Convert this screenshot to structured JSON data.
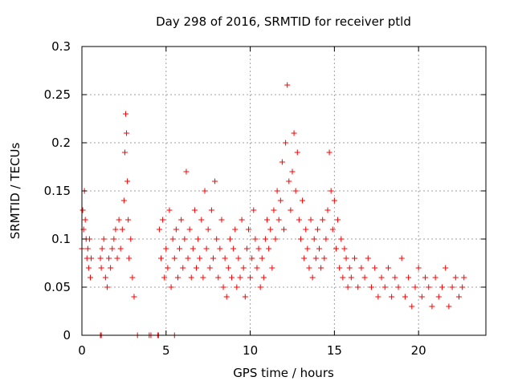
{
  "chart_data": {
    "type": "scatter",
    "title": "Day 298 of 2016, SRMTID for receiver ptld",
    "xlabel": "GPS time / hours",
    "ylabel": "SRMTID / TECUs",
    "xlim": [
      0,
      24
    ],
    "ylim": [
      0,
      0.3
    ],
    "xticks": [
      0,
      5,
      10,
      15,
      20
    ],
    "xtick_labels": [
      "0",
      "5",
      "10",
      "15",
      "20"
    ],
    "yticks": [
      0,
      0.05,
      0.1,
      0.15,
      0.2,
      0.25,
      0.3
    ],
    "ytick_labels": [
      "0",
      "0.05",
      "0.1",
      "0.15",
      "0.2",
      "0.25",
      "0.3"
    ],
    "grid": true,
    "marker": "+",
    "color": "#ff0000",
    "series": [
      {
        "name": "SRMTID",
        "x": [
          0.0,
          0.05,
          0.1,
          0.15,
          0.2,
          0.25,
          0.3,
          0.35,
          0.4,
          0.45,
          0.5,
          0.55,
          1.1,
          1.15,
          1.2,
          1.3,
          1.4,
          1.5,
          1.6,
          1.7,
          1.8,
          1.9,
          2.0,
          2.1,
          2.2,
          2.3,
          2.4,
          2.5,
          2.55,
          2.6,
          2.65,
          2.7,
          2.75,
          2.8,
          2.9,
          3.0,
          3.1,
          4.6,
          4.7,
          4.8,
          4.9,
          5.0,
          5.1,
          5.2,
          5.3,
          5.4,
          5.5,
          5.6,
          5.7,
          5.8,
          5.9,
          6.0,
          6.1,
          6.2,
          6.3,
          6.4,
          6.5,
          6.6,
          6.7,
          6.8,
          6.9,
          7.0,
          7.1,
          7.2,
          7.3,
          7.4,
          7.5,
          7.6,
          7.7,
          7.8,
          7.9,
          8.0,
          8.1,
          8.2,
          8.3,
          8.4,
          8.5,
          8.6,
          8.7,
          8.8,
          8.9,
          9.0,
          9.1,
          9.2,
          9.3,
          9.4,
          9.5,
          9.6,
          9.7,
          9.8,
          9.9,
          10.0,
          10.1,
          10.2,
          10.3,
          10.4,
          10.5,
          10.6,
          10.7,
          10.8,
          10.9,
          11.0,
          11.1,
          11.2,
          11.3,
          11.4,
          11.5,
          11.6,
          11.7,
          11.8,
          11.9,
          12.0,
          12.1,
          12.2,
          12.3,
          12.4,
          12.5,
          12.6,
          12.7,
          12.8,
          12.9,
          13.0,
          13.1,
          13.2,
          13.3,
          13.4,
          13.5,
          13.6,
          13.7,
          13.8,
          13.9,
          14.0,
          14.1,
          14.2,
          14.3,
          14.4,
          14.5,
          14.6,
          14.7,
          14.8,
          14.9,
          15.0,
          15.1,
          15.2,
          15.3,
          15.4,
          15.5,
          15.6,
          15.7,
          15.8,
          15.9,
          16.0,
          16.2,
          16.4,
          16.6,
          16.8,
          17.0,
          17.2,
          17.4,
          17.6,
          17.8,
          18.0,
          18.2,
          18.4,
          18.6,
          18.8,
          19.0,
          19.2,
          19.4,
          19.6,
          19.8,
          20.0,
          20.2,
          20.4,
          20.6,
          20.8,
          21.0,
          21.2,
          21.4,
          21.6,
          21.8,
          22.0,
          22.2,
          22.4,
          22.6,
          22.7,
          1.1,
          1.15,
          3.3,
          4.0,
          4.1,
          4.5,
          4.55,
          5.5
        ],
        "y": [
          0.09,
          0.13,
          0.11,
          0.15,
          0.12,
          0.1,
          0.08,
          0.09,
          0.07,
          0.1,
          0.06,
          0.08,
          0.08,
          0.07,
          0.09,
          0.1,
          0.06,
          0.05,
          0.08,
          0.07,
          0.09,
          0.1,
          0.11,
          0.08,
          0.12,
          0.09,
          0.11,
          0.14,
          0.19,
          0.23,
          0.21,
          0.16,
          0.12,
          0.08,
          0.1,
          0.06,
          0.04,
          0.11,
          0.08,
          0.12,
          0.06,
          0.09,
          0.07,
          0.13,
          0.05,
          0.1,
          0.08,
          0.11,
          0.06,
          0.09,
          0.12,
          0.07,
          0.1,
          0.17,
          0.08,
          0.11,
          0.06,
          0.09,
          0.13,
          0.07,
          0.1,
          0.08,
          0.12,
          0.06,
          0.15,
          0.09,
          0.11,
          0.07,
          0.13,
          0.08,
          0.16,
          0.1,
          0.06,
          0.09,
          0.12,
          0.05,
          0.08,
          0.04,
          0.07,
          0.1,
          0.06,
          0.09,
          0.11,
          0.05,
          0.08,
          0.06,
          0.12,
          0.07,
          0.04,
          0.09,
          0.11,
          0.06,
          0.08,
          0.13,
          0.1,
          0.07,
          0.09,
          0.05,
          0.08,
          0.06,
          0.1,
          0.12,
          0.09,
          0.11,
          0.07,
          0.13,
          0.1,
          0.15,
          0.12,
          0.14,
          0.18,
          0.11,
          0.2,
          0.26,
          0.16,
          0.13,
          0.17,
          0.21,
          0.15,
          0.19,
          0.12,
          0.1,
          0.14,
          0.08,
          0.11,
          0.09,
          0.07,
          0.12,
          0.06,
          0.1,
          0.08,
          0.11,
          0.09,
          0.07,
          0.12,
          0.08,
          0.1,
          0.13,
          0.19,
          0.15,
          0.11,
          0.14,
          0.09,
          0.12,
          0.07,
          0.1,
          0.06,
          0.09,
          0.08,
          0.05,
          0.07,
          0.06,
          0.08,
          0.05,
          0.07,
          0.06,
          0.08,
          0.05,
          0.07,
          0.04,
          0.06,
          0.05,
          0.07,
          0.04,
          0.06,
          0.05,
          0.08,
          0.04,
          0.06,
          0.03,
          0.05,
          0.07,
          0.04,
          0.06,
          0.05,
          0.03,
          0.06,
          0.04,
          0.05,
          0.07,
          0.03,
          0.05,
          0.06,
          0.04,
          0.05,
          0.06,
          0.0,
          0.0,
          0.0,
          0.0,
          0.0,
          0.0,
          0.0,
          0.0
        ]
      }
    ]
  }
}
